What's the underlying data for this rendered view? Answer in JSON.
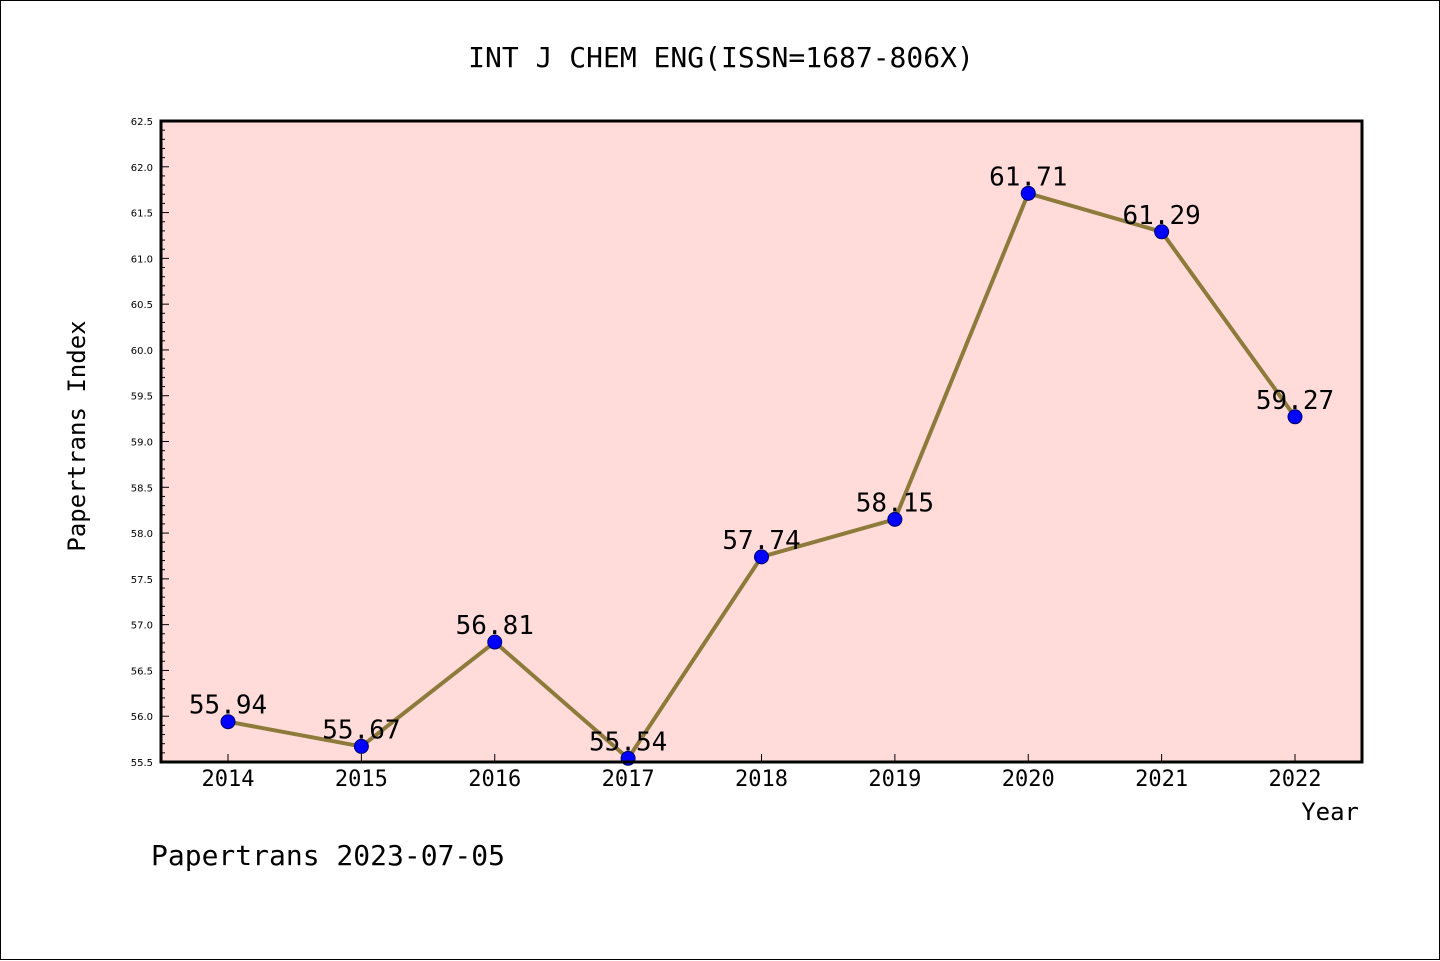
{
  "chart_data": {
    "type": "line",
    "title": "INT J CHEM ENG(ISSN=1687-806X)",
    "xlabel": "Year",
    "ylabel": "Papertrans Index",
    "footer": "Papertrans 2023-07-05",
    "categories": [
      "2014",
      "2015",
      "2016",
      "2017",
      "2018",
      "2019",
      "2020",
      "2021",
      "2022"
    ],
    "values": [
      55.94,
      55.67,
      56.81,
      55.54,
      57.74,
      58.15,
      61.71,
      61.29,
      59.27
    ],
    "data_labels": [
      "55.94",
      "55.67",
      "56.81",
      "55.54",
      "57.74",
      "58.15",
      "61.71",
      "61.29",
      "59.27"
    ],
    "ylim": [
      55.5,
      62.5
    ],
    "y_ticks": [
      "55.5",
      "56.0",
      "56.5",
      "57.0",
      "57.5",
      "58.0",
      "58.5",
      "59.0",
      "59.5",
      "60.0",
      "60.5",
      "61.0",
      "61.5",
      "62.0",
      "62.5"
    ],
    "grid": false,
    "legend": "none",
    "colors": {
      "plot_background": "#FFDCDA",
      "line": "#8E7A3A",
      "marker": "#0000FF",
      "marker_edge": "#000066",
      "axis": "#000000"
    }
  }
}
